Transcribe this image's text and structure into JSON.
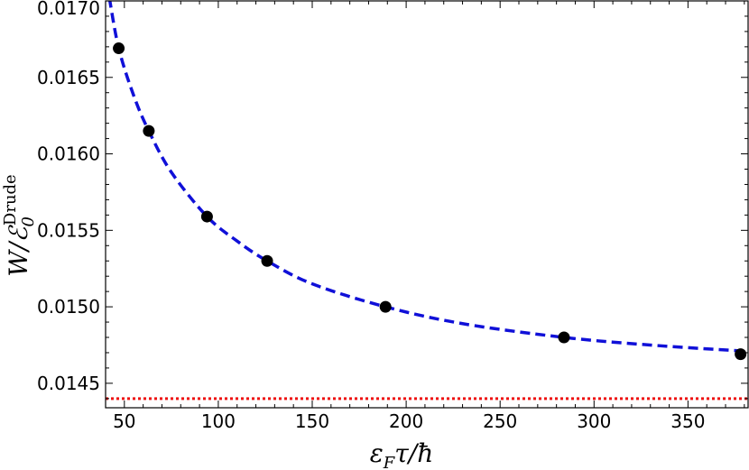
{
  "chart_data": {
    "type": "scatter",
    "xlabel": {
      "main": "ε",
      "sub": "F",
      "rest": "τ/ħ"
    },
    "ylabel": {
      "main": "W/ℰ",
      "sub": "0",
      "sup": "Drude"
    },
    "xlim": [
      40,
      382
    ],
    "ylim": [
      0.01434,
      0.017
    ],
    "xticks": [
      "50",
      "100",
      "150",
      "200",
      "250",
      "300",
      "350"
    ],
    "xtick_values": [
      50,
      100,
      150,
      200,
      250,
      300,
      350
    ],
    "yticks": [
      "0.0145",
      "0.0150",
      "0.0155",
      "0.0160",
      "0.0165",
      "0.0170"
    ],
    "ytick_values": [
      0.0145,
      0.015,
      0.0155,
      0.016,
      0.0165,
      0.017
    ],
    "series": [
      {
        "kind": "points",
        "x": [
          47,
          63,
          94,
          126,
          189,
          284,
          378
        ],
        "values": [
          0.01669,
          0.01615,
          0.01559,
          0.0153,
          0.015,
          0.0148,
          0.01469
        ]
      },
      {
        "kind": "fit",
        "style": "dashed",
        "x": [
          42,
          47,
          55,
          63,
          75,
          94,
          110,
          126,
          150,
          189,
          230,
          284,
          330,
          380
        ],
        "values": [
          0.01702,
          0.01669,
          0.01638,
          0.01615,
          0.01588,
          0.01559,
          0.01543,
          0.0153,
          0.01515,
          0.015,
          0.01489,
          0.0148,
          0.01475,
          0.01471
        ]
      },
      {
        "kind": "asymptote",
        "style": "dotted",
        "value": 0.0144
      }
    ],
    "colors": {
      "points": "#000000",
      "fit": "#1010d8",
      "asymptote": "#ee1111",
      "axes": "#000000"
    },
    "grid": false
  }
}
